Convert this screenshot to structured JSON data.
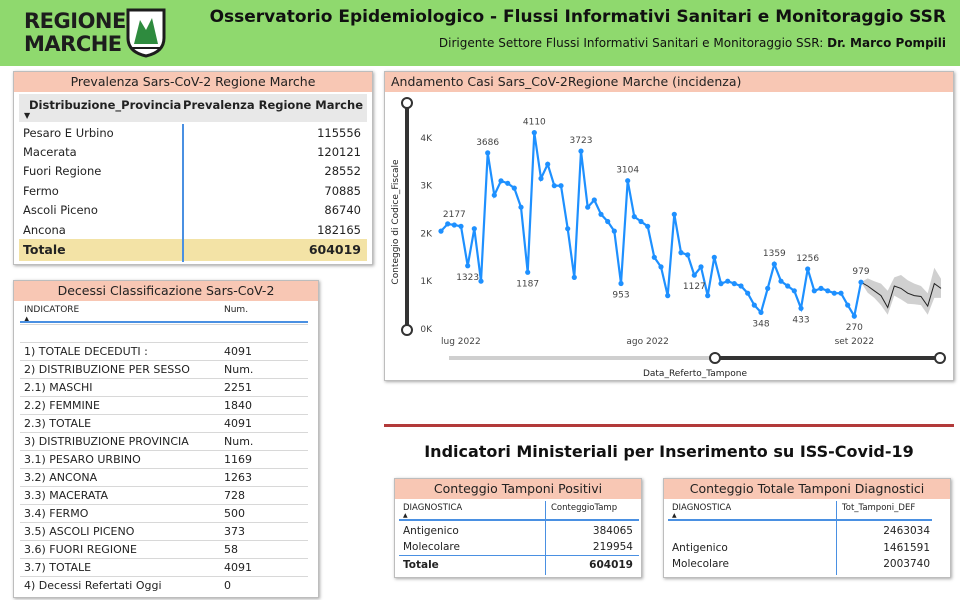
{
  "header": {
    "logo_line1": "REGIONE",
    "logo_line2": "MARCHE",
    "title": "Osservatorio Epidemiologico - Flussi Informativi Sanitari e Monitoraggio SSR",
    "subtitle_prefix": "Dirigente Settore Flussi Informativi Sanitari e Monitoraggio SSR: ",
    "subtitle_name": "Dr. Marco Pompili"
  },
  "prevalenza": {
    "title": "Prevalenza Sars-CoV-2 Regione Marche",
    "col1": "Distribuzione_Provincia",
    "col2": "Prevalenza Regione Marche",
    "rows": [
      {
        "name": "Pesaro E Urbino",
        "value": "115556"
      },
      {
        "name": "Macerata",
        "value": "120121"
      },
      {
        "name": "Fuori Regione",
        "value": "28552"
      },
      {
        "name": "Fermo",
        "value": "70885"
      },
      {
        "name": "Ascoli Piceno",
        "value": "86740"
      },
      {
        "name": "Ancona",
        "value": "182165"
      }
    ],
    "total_label": "Totale",
    "total_value": "604019"
  },
  "decessi": {
    "title": "Decessi Classificazione Sars-CoV-2",
    "col1": "INDICATORE",
    "col2": "Num.",
    "rows": [
      {
        "name": "",
        "value": ""
      },
      {
        "name": "1) TOTALE DECEDUTI :",
        "value": "4091"
      },
      {
        "name": "2) DISTRIBUZIONE PER SESSO",
        "value": "Num."
      },
      {
        "name": "2.1) MASCHI",
        "value": "2251"
      },
      {
        "name": "2.2) FEMMINE",
        "value": "1840"
      },
      {
        "name": "2.3) TOTALE",
        "value": "4091"
      },
      {
        "name": "3) DISTRIBUZIONE PROVINCIA",
        "value": "Num."
      },
      {
        "name": "3.1) PESARO URBINO",
        "value": "1169"
      },
      {
        "name": "3.2) ANCONA",
        "value": "1263"
      },
      {
        "name": "3.3) MACERATA",
        "value": "728"
      },
      {
        "name": "3.4) FERMO",
        "value": "500"
      },
      {
        "name": "3.5) ASCOLI PICENO",
        "value": "373"
      },
      {
        "name": "3.6) FUORI REGIONE",
        "value": "58"
      },
      {
        "name": "3.7) TOTALE",
        "value": "4091"
      },
      {
        "name": "4) Decessi Refertati Oggi",
        "value": "0"
      }
    ]
  },
  "chart": {
    "title": "Andamento Casi Sars_CoV-2Regione Marche (incidenza)"
  },
  "chart_data": {
    "type": "line",
    "title": "Andamento Casi Sars_CoV-2Regione Marche (incidenza)",
    "xlabel": "Data_Referto_Tampone",
    "ylabel": "Conteggio di Codice_Fiscale",
    "ylim": [
      0,
      4500
    ],
    "yticks": [
      0,
      1000,
      2000,
      3000,
      4000
    ],
    "ytick_labels": [
      "0K",
      "1K",
      "2K",
      "3K",
      "4K"
    ],
    "x_tick_labels": [
      "lug 2022",
      "ago 2022",
      "set 2022"
    ],
    "x_tick_index": [
      0,
      31,
      62
    ],
    "grid": false,
    "line_color": "#1e90ff",
    "forecast_color": "#222222",
    "band_color": "#c8c8c8",
    "series": [
      {
        "values": [
          2050,
          2200,
          2177,
          2150,
          1323,
          2100,
          1000,
          3686,
          2800,
          3100,
          3050,
          2950,
          2550,
          1187,
          4110,
          3150,
          3450,
          3000,
          3000,
          2100,
          1080,
          3723,
          2550,
          2700,
          2400,
          2250,
          2050,
          953,
          3104,
          2350,
          2250,
          2150,
          1500,
          1300,
          700,
          2400,
          1600,
          1550,
          1127,
          1300,
          700,
          1500,
          950,
          1000,
          950,
          900,
          750,
          500,
          348,
          850,
          1359,
          1000,
          900,
          800,
          433,
          1256,
          800,
          850,
          800,
          750,
          750,
          500,
          270,
          979
        ]
      },
      {
        "values": [
          979,
          900,
          800,
          700,
          450,
          900,
          850,
          750,
          700,
          680,
          480,
          950,
          850
        ]
      }
    ],
    "forecast_band": {
      "upper": [
        979,
        1060,
        1000,
        950,
        800,
        1080,
        1130,
        1020,
        950,
        900,
        750,
        1280,
        1050
      ],
      "lower": [
        979,
        760,
        650,
        500,
        300,
        700,
        620,
        530,
        520,
        500,
        300,
        650,
        650
      ]
    },
    "data_labels": [
      {
        "index": 2,
        "text": "2177"
      },
      {
        "index": 4,
        "text": "1323"
      },
      {
        "index": 7,
        "text": "3686"
      },
      {
        "index": 13,
        "text": "1187"
      },
      {
        "index": 14,
        "text": "4110"
      },
      {
        "index": 21,
        "text": "3723"
      },
      {
        "index": 27,
        "text": "953"
      },
      {
        "index": 28,
        "text": "3104"
      },
      {
        "index": 38,
        "text": "1127"
      },
      {
        "index": 48,
        "text": "348"
      },
      {
        "index": 50,
        "text": "1359"
      },
      {
        "index": 54,
        "text": "433"
      },
      {
        "index": 55,
        "text": "1256"
      },
      {
        "index": 62,
        "text": "270"
      },
      {
        "index": 63,
        "text": "979"
      }
    ]
  },
  "indicatori": {
    "title": "Indicatori Ministeriali per Inserimento su ISS-Covid-19"
  },
  "tamponi_positivi": {
    "title": "Conteggio Tamponi Positivi",
    "col1": "DIAGNOSTICA",
    "col2": "ConteggioTamp",
    "rows": [
      {
        "name": "Antigenico",
        "value": "384065"
      },
      {
        "name": "Molecolare",
        "value": "219954"
      }
    ],
    "total_label": "Totale",
    "total_value": "604019"
  },
  "tamponi_totali": {
    "title": "Conteggio Totale Tamponi Diagnostici",
    "col1": "DIAGNOSTICA",
    "col2": "Tot_Tamponi_DEF",
    "rows": [
      {
        "name": "",
        "value": "2463034"
      },
      {
        "name": "Antigenico",
        "value": "1461591"
      },
      {
        "name": "Molecolare",
        "value": "2003740"
      }
    ]
  }
}
